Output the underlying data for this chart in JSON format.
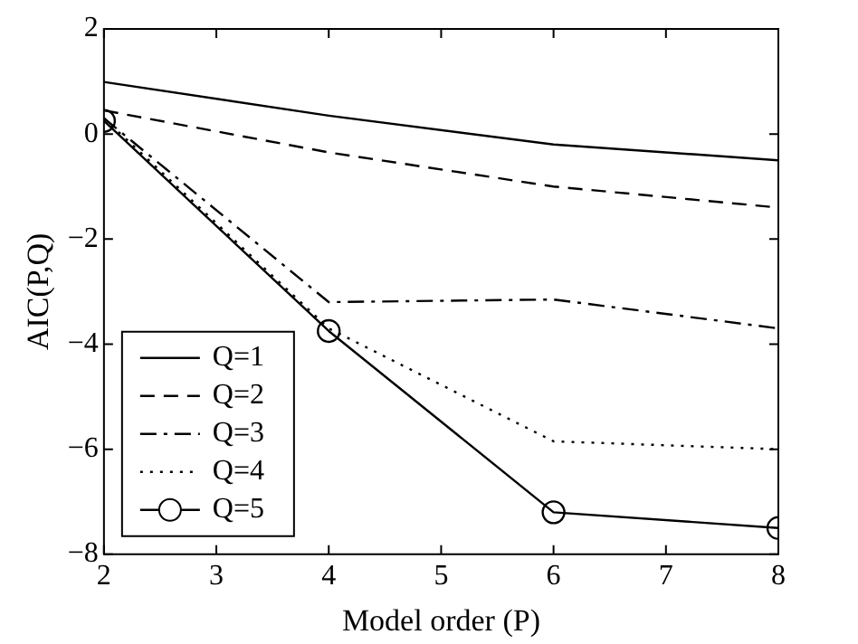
{
  "chart_data": {
    "type": "line",
    "xlabel": "Model order (P)",
    "ylabel": "AIC(P,Q)",
    "x": [
      2,
      4,
      6,
      8
    ],
    "series": [
      {
        "name": "Q=1",
        "color": "#000000",
        "line_style": "solid",
        "marker": "none",
        "values": [
          0.99,
          0.35,
          -0.2,
          -0.5
        ]
      },
      {
        "name": "Q=2",
        "color": "#000000",
        "line_style": "dashed",
        "marker": "none",
        "values": [
          0.45,
          -0.35,
          -1.0,
          -1.4
        ]
      },
      {
        "name": "Q=3",
        "color": "#000000",
        "line_style": "dashdot",
        "marker": "none",
        "values": [
          0.3,
          -3.2,
          -3.15,
          -3.7
        ]
      },
      {
        "name": "Q=4",
        "color": "#000000",
        "line_style": "dotted",
        "marker": "none",
        "values": [
          0.3,
          -3.7,
          -5.85,
          -6.0
        ]
      },
      {
        "name": "Q=5",
        "color": "#000000",
        "line_style": "solid",
        "marker": "circle",
        "values": [
          0.25,
          -3.75,
          -7.2,
          -7.5
        ]
      }
    ],
    "xlim": [
      2,
      8
    ],
    "xticks": [
      2,
      3,
      4,
      5,
      6,
      7,
      8
    ],
    "ylim": [
      -8,
      2
    ],
    "yticks": [
      -8,
      -6,
      -4,
      -2,
      0,
      2
    ],
    "grid": false,
    "legend": "bottom left"
  }
}
